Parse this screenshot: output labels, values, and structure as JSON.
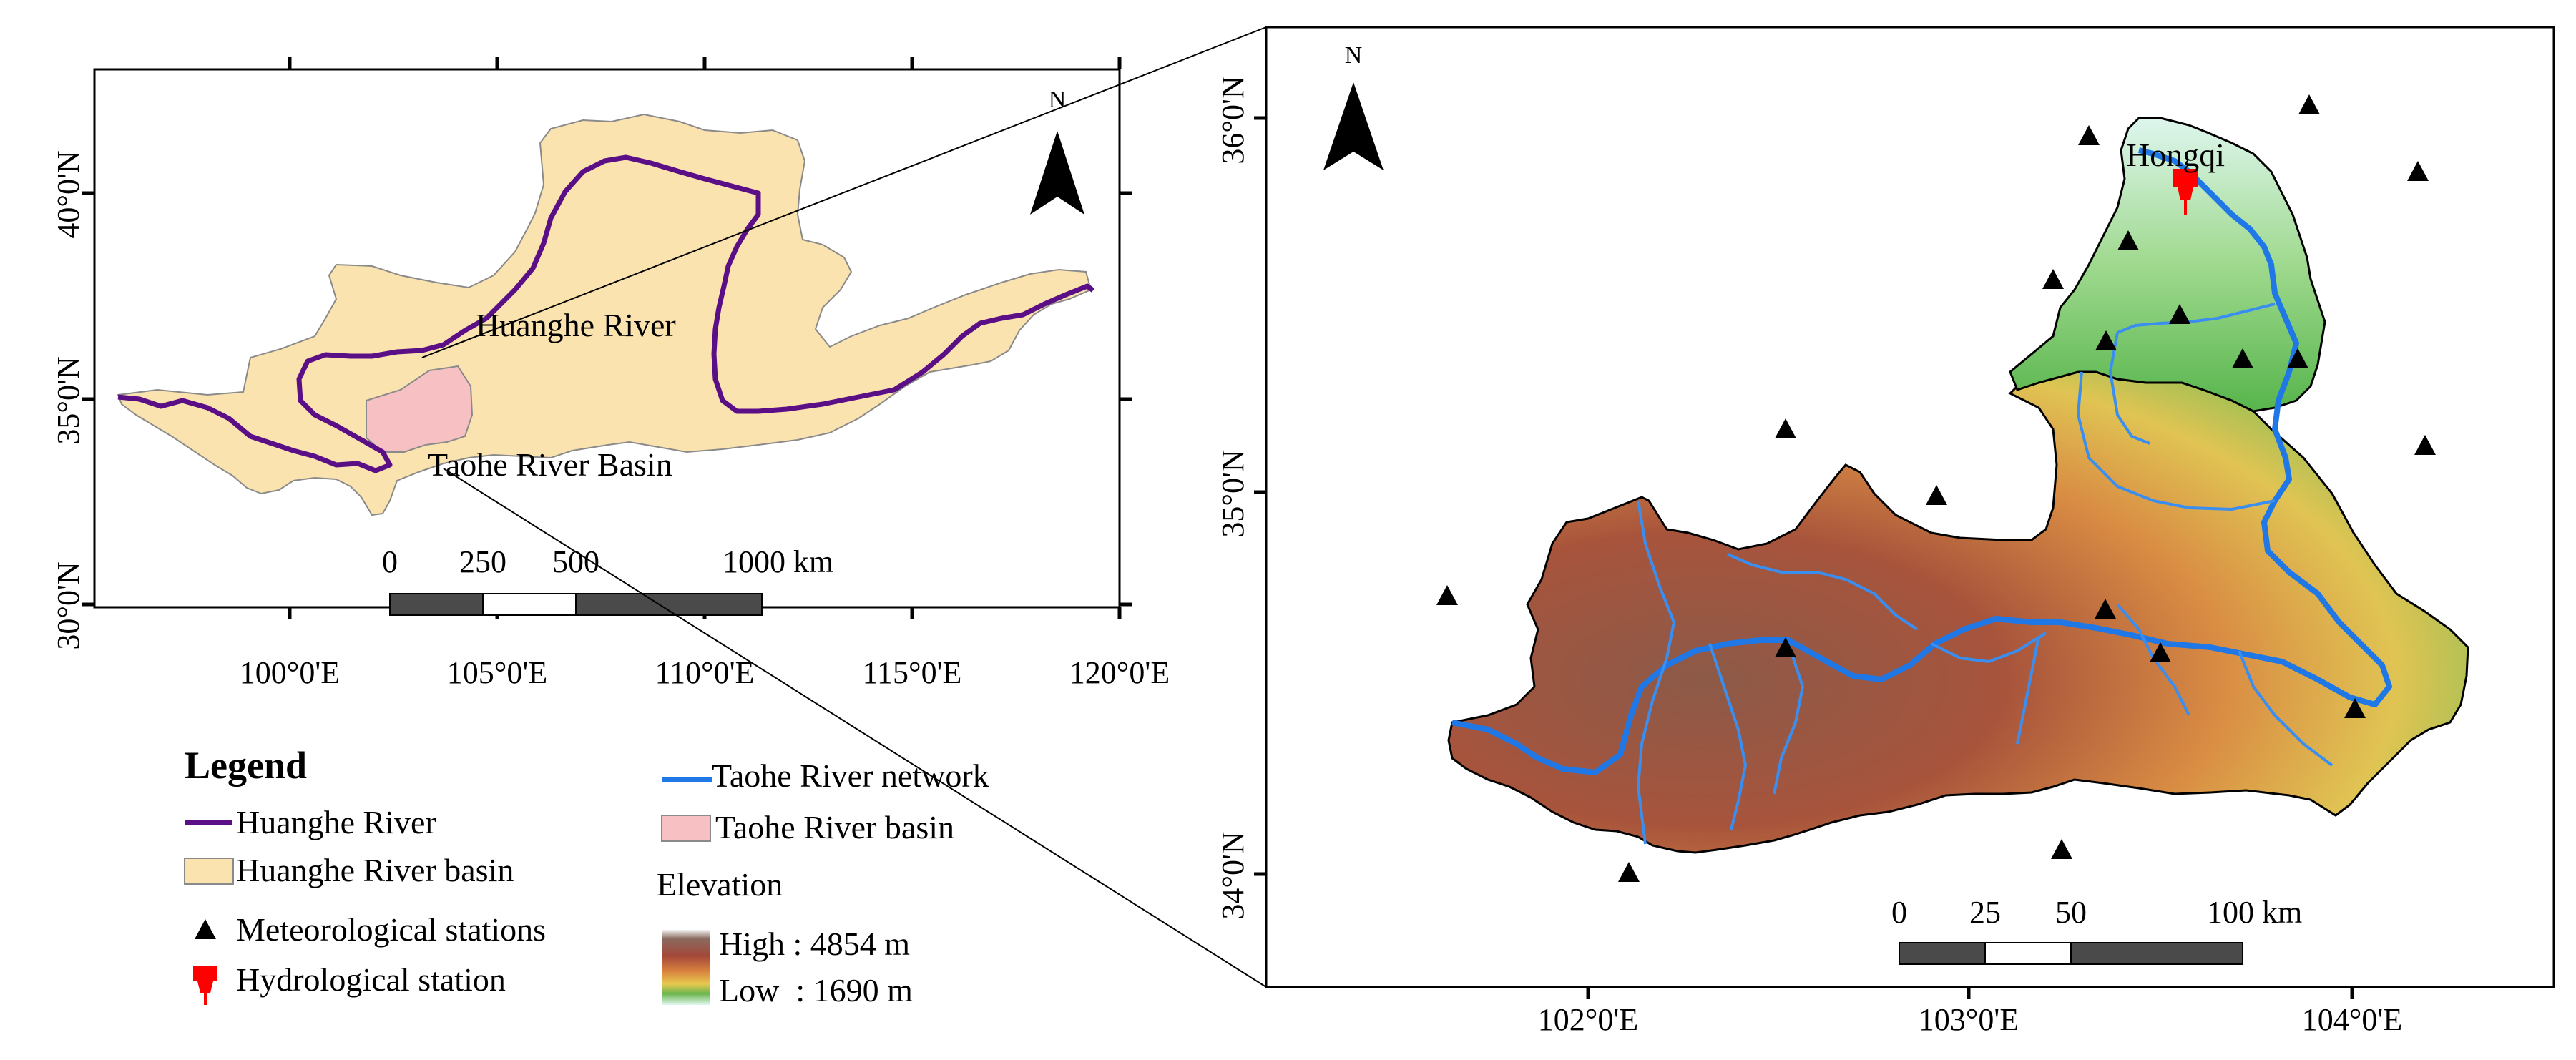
{
  "overview_map": {
    "lat_labels": [
      "40°0'N",
      "35°0'N",
      "30°0'N"
    ],
    "lon_labels": [
      "100°0'E",
      "105°0'E",
      "110°0'E",
      "115°0'E",
      "120°0'E"
    ],
    "north_label": "N",
    "river_label": "Huanghe River",
    "basin_label": "Taohe River Basin",
    "scale_labels": [
      "0",
      "250",
      "500",
      "1000 km"
    ]
  },
  "detail_map": {
    "lat_labels": [
      "36°0'N",
      "35°0'N",
      "34°0'N"
    ],
    "lon_labels": [
      "102°0'E",
      "103°0'E",
      "104°0'E"
    ],
    "north_label": "N",
    "station_label": "Hongqi",
    "scale_labels": [
      "0",
      "25",
      "50",
      "100 km"
    ],
    "meteorological_station_count": 20
  },
  "legend": {
    "title": "Legend",
    "items": {
      "huanghe_river": "Huanghe River",
      "huanghe_basin": "Huanghe River basin",
      "met_stations": "Meteorological stations",
      "hydro_station": "Hydrological station",
      "taohe_network": "Taohe River network",
      "taohe_basin": "Taohe River basin",
      "elevation": "Elevation",
      "elev_high": "High : 4854 m",
      "elev_low": "Low  : 1690 m"
    }
  },
  "colors": {
    "huanghe_river": "#5b0f86",
    "huanghe_basin": "#fbe3b0",
    "taohe_basin": "#f7c0c3",
    "taohe_network": "#1f78e6",
    "hydro_station": "#ff0000",
    "elev_high": "#6e3f2d",
    "elev_low": "#dff7ee"
  }
}
